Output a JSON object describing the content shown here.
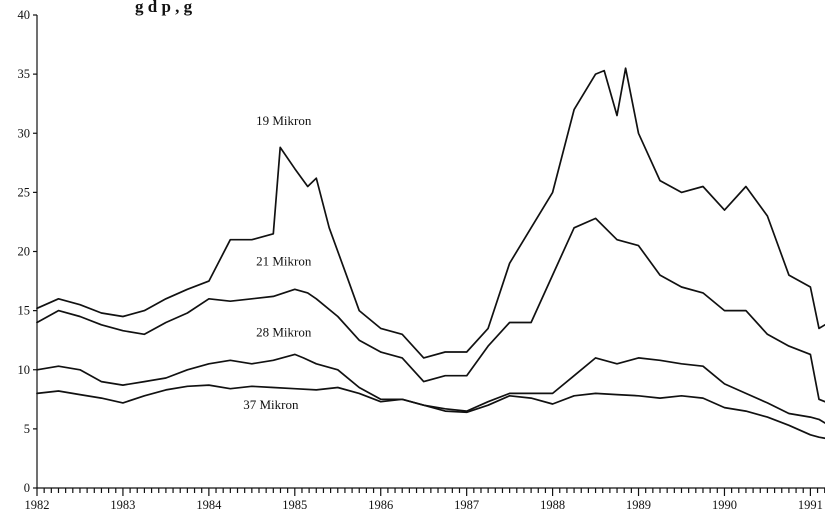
{
  "chart_data": {
    "type": "line",
    "title": "g d        p     ,    g",
    "xlabel": "",
    "ylabel": "",
    "xlim": [
      1982,
      1991.17
    ],
    "ylim": [
      0,
      40
    ],
    "grid": false,
    "x_ticks": [
      "1982",
      "1983",
      "1984",
      "1985",
      "1986",
      "1987",
      "1988",
      "1989",
      "1990",
      "1991"
    ],
    "y_ticks": [
      "0",
      "5",
      "10",
      "15",
      "20",
      "25",
      "30",
      "35",
      "40"
    ],
    "series": [
      {
        "name": "19 Mikron",
        "x": [
          1982.0,
          1982.25,
          1982.5,
          1982.75,
          1983.0,
          1983.25,
          1983.5,
          1983.75,
          1984.0,
          1984.25,
          1984.5,
          1984.75,
          1984.83,
          1985.0,
          1985.15,
          1985.25,
          1985.4,
          1985.6,
          1985.75,
          1986.0,
          1986.25,
          1986.5,
          1986.75,
          1987.0,
          1987.25,
          1987.5,
          1987.75,
          1988.0,
          1988.25,
          1988.5,
          1988.6,
          1988.75,
          1988.85,
          1989.0,
          1989.25,
          1989.5,
          1989.75,
          1990.0,
          1990.25,
          1990.5,
          1990.75,
          1991.0,
          1991.1,
          1991.17
        ],
        "values": [
          15.2,
          16.0,
          15.5,
          14.8,
          14.5,
          15.0,
          16.0,
          16.8,
          17.5,
          21.0,
          21.0,
          21.5,
          28.8,
          27.0,
          25.5,
          26.2,
          22.0,
          18.0,
          15.0,
          13.5,
          13.0,
          11.0,
          11.5,
          11.5,
          13.5,
          19.0,
          22.0,
          25.0,
          32.0,
          35.0,
          35.3,
          31.5,
          35.5,
          30.0,
          26.0,
          25.0,
          25.5,
          23.5,
          25.5,
          23.0,
          18.0,
          17.0,
          13.5,
          13.8
        ]
      },
      {
        "name": "21 Mikron",
        "x": [
          1982.0,
          1982.25,
          1982.5,
          1982.75,
          1983.0,
          1983.25,
          1983.5,
          1983.75,
          1984.0,
          1984.25,
          1984.5,
          1984.75,
          1985.0,
          1985.15,
          1985.25,
          1985.5,
          1985.75,
          1986.0,
          1986.25,
          1986.5,
          1986.75,
          1987.0,
          1987.25,
          1987.5,
          1987.75,
          1988.0,
          1988.25,
          1988.5,
          1988.75,
          1989.0,
          1989.25,
          1989.5,
          1989.75,
          1990.0,
          1990.25,
          1990.5,
          1990.75,
          1991.0,
          1991.1,
          1991.17
        ],
        "values": [
          14.0,
          15.0,
          14.5,
          13.8,
          13.3,
          13.0,
          14.0,
          14.8,
          16.0,
          15.8,
          16.0,
          16.2,
          16.8,
          16.5,
          16.0,
          14.5,
          12.5,
          11.5,
          11.0,
          9.0,
          9.5,
          9.5,
          12.0,
          14.0,
          14.0,
          18.0,
          22.0,
          22.8,
          21.0,
          20.5,
          18.0,
          17.0,
          16.5,
          15.0,
          15.0,
          13.0,
          12.0,
          11.3,
          7.5,
          7.3
        ]
      },
      {
        "name": "28 Mikron",
        "x": [
          1982.0,
          1982.25,
          1982.5,
          1982.75,
          1983.0,
          1983.25,
          1983.5,
          1983.75,
          1984.0,
          1984.25,
          1984.5,
          1984.75,
          1985.0,
          1985.1,
          1985.25,
          1985.5,
          1985.75,
          1986.0,
          1986.25,
          1986.5,
          1986.75,
          1987.0,
          1987.25,
          1987.5,
          1987.75,
          1988.0,
          1988.25,
          1988.5,
          1988.75,
          1989.0,
          1989.25,
          1989.5,
          1989.75,
          1990.0,
          1990.25,
          1990.5,
          1990.75,
          1991.0,
          1991.1,
          1991.17
        ],
        "values": [
          10.0,
          10.3,
          10.0,
          9.0,
          8.7,
          9.0,
          9.3,
          10.0,
          10.5,
          10.8,
          10.5,
          10.8,
          11.3,
          11.0,
          10.5,
          10.0,
          8.5,
          7.5,
          7.5,
          7.0,
          6.7,
          6.5,
          7.3,
          8.0,
          8.0,
          8.0,
          9.5,
          11.0,
          10.5,
          11.0,
          10.8,
          10.5,
          10.3,
          8.8,
          8.0,
          7.2,
          6.3,
          6.0,
          5.8,
          5.5
        ]
      },
      {
        "name": "37 Mikron",
        "x": [
          1982.0,
          1982.25,
          1982.5,
          1982.75,
          1983.0,
          1983.25,
          1983.5,
          1983.75,
          1984.0,
          1984.25,
          1984.5,
          1984.75,
          1985.0,
          1985.25,
          1985.5,
          1985.75,
          1986.0,
          1986.25,
          1986.5,
          1986.75,
          1987.0,
          1987.25,
          1987.5,
          1987.75,
          1988.0,
          1988.25,
          1988.5,
          1988.75,
          1989.0,
          1989.25,
          1989.5,
          1989.75,
          1990.0,
          1990.25,
          1990.5,
          1990.75,
          1991.0,
          1991.1,
          1991.17
        ],
        "values": [
          8.0,
          8.2,
          7.9,
          7.6,
          7.2,
          7.8,
          8.3,
          8.6,
          8.7,
          8.4,
          8.6,
          8.5,
          8.4,
          8.3,
          8.5,
          8.0,
          7.3,
          7.5,
          7.0,
          6.5,
          6.4,
          7.0,
          7.8,
          7.6,
          7.1,
          7.8,
          8.0,
          7.9,
          7.8,
          7.6,
          7.8,
          7.6,
          6.8,
          6.5,
          6.0,
          5.3,
          4.5,
          4.3,
          4.2
        ]
      }
    ]
  }
}
